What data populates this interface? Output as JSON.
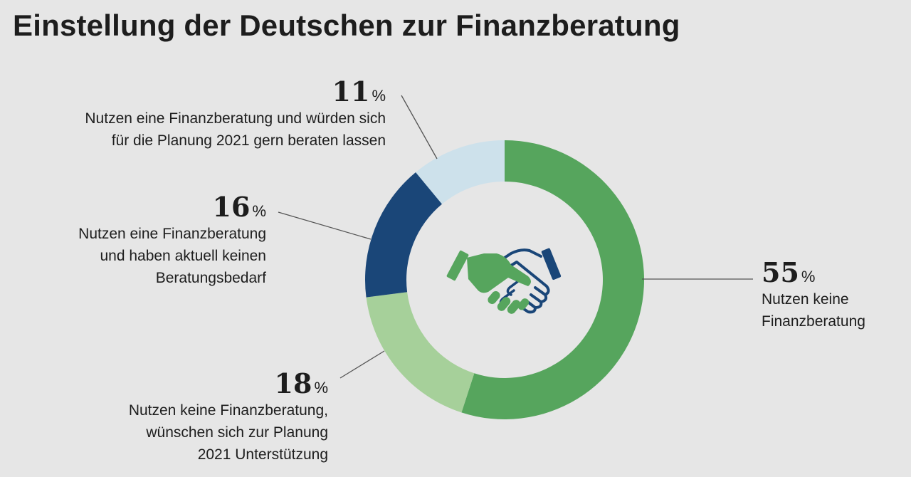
{
  "title": "Einstellung der Deutschen zur Finanzberatung",
  "icon": "handshake-icon",
  "chart_data": {
    "type": "pie",
    "donut": true,
    "slices": [
      {
        "label": "Nutzen keine Finanzberatung",
        "value": 55,
        "pct_text": "55",
        "unit": "%",
        "color": "#56a55d"
      },
      {
        "label": "Nutzen keine Finanzberatung, wünschen sich zur Planung 2021 Unterstützung",
        "value": 18,
        "pct_text": "18",
        "unit": "%",
        "color": "#a6d09a"
      },
      {
        "label": "Nutzen eine Finanzberatung und haben aktuell keinen Beratungsbedarf",
        "value": 16,
        "pct_text": "16",
        "unit": "%",
        "color": "#1a4678"
      },
      {
        "label": "Nutzen eine Finanzberatung und würden sich für die Planung 2021 gern beraten lassen",
        "value": 11,
        "pct_text": "11",
        "unit": "%",
        "color": "#cde1eb"
      }
    ],
    "labels": {
      "s55": {
        "num": "55",
        "unit": "%",
        "text": "Nutzen keine\nFinanzberatung"
      },
      "s18": {
        "num": "18",
        "unit": "%",
        "text": "Nutzen keine Finanzberatung,\nwünschen sich zur Planung\n2021 Unterstützung"
      },
      "s16": {
        "num": "16",
        "unit": "%",
        "text": "Nutzen eine Finanzberatung\nund haben aktuell keinen\nBeratungsbedarf"
      },
      "s11": {
        "num": "11",
        "unit": "%",
        "text": "Nutzen eine Finanzberatung und würden sich\nfür die Planung 2021 gern beraten lassen"
      }
    },
    "colors": {
      "leader": "#555555",
      "icon_green": "#56a55d",
      "icon_blue": "#1a4678"
    }
  }
}
